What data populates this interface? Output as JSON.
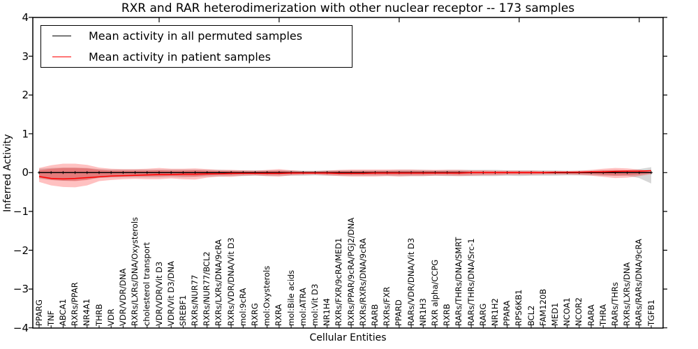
{
  "chart_data": {
    "type": "line",
    "title": "RXR and RAR heterodimerization with other nuclear receptor -- 173 samples",
    "xlabel": "Cellular Entities",
    "ylabel": "Inferred Activity",
    "ylim": [
      -4,
      4
    ],
    "ytick_values": [
      4,
      3,
      2,
      1,
      0,
      -1,
      -2,
      -3,
      -4
    ],
    "ytick_labels": [
      "4",
      "3",
      "2",
      "1",
      "0",
      "−1",
      "−2",
      "−3",
      "−4"
    ],
    "grid": false,
    "legend_position": "upper left",
    "xtick_major_indices": [
      10,
      20,
      30,
      40,
      50
    ],
    "categories": [
      "PPARG",
      "TNF",
      "ABCA1",
      "RXRs/PPAR",
      "NR4A1",
      "THRB",
      "VDR",
      "VDR/VDR/DNA",
      "RXRs/LXRs/DNA/Oxysterols",
      "cholesterol transport",
      "VDR/VDR/Vit D3",
      "VDR/Vit D3/DNA",
      "SREBF1",
      "RXRs/NUR77",
      "RXRs/NUR77/BCL2",
      "RXRs/LXRs/DNA/9cRA",
      "RXRs/VDR/DNA/Vit D3",
      "mol:9cRA",
      "RXRG",
      "mol:Oxysterols",
      "RXRA",
      "mol:Bile acids",
      "mol:ATRA",
      "mol:Vit D3",
      "NR1H4",
      "RXRs/FXR/9cRA/MED1",
      "RXRs/PPAR/9cRA/PGJ2/DNA",
      "RXRs/RXRs/DNA/9cRA",
      "RARB",
      "RXRs/FXR",
      "PPARD",
      "RARs/VDR/DNA/Vit D3",
      "NR1H3",
      "RXR alpha/CCPG",
      "RXRB",
      "RARs/THRs/DNA/SMRT",
      "RARs/THRs/DNA/Src-1",
      "RARG",
      "NR1H2",
      "PPARA",
      "RPS6KB1",
      "BCL2",
      "FAM120B",
      "MED1",
      "NCOA1",
      "NCOR2",
      "RARA",
      "THRA",
      "RARs/THRs",
      "RXRs/LXRs/DNA",
      "RARs/RARs/DNA/9cRA",
      "TGFB1"
    ],
    "series": [
      {
        "name": "Mean activity in all permuted samples",
        "color": "#000000",
        "marker": "+",
        "values": [
          0,
          0,
          0,
          0,
          0,
          0,
          0,
          0,
          0,
          0,
          0,
          0,
          0,
          0,
          0,
          0,
          0,
          0,
          0,
          0,
          0,
          0,
          0,
          0,
          0,
          0,
          0,
          0,
          0,
          0,
          0,
          0,
          0,
          0,
          0,
          0,
          0,
          0,
          0,
          0,
          0,
          0,
          0,
          0,
          0,
          0,
          0,
          0,
          0,
          0,
          0,
          0
        ]
      },
      {
        "name": "Mean activity in patient samples",
        "color": "#ff0000",
        "marker": "none",
        "values": [
          -0.1,
          -0.15,
          -0.16,
          -0.15,
          -0.13,
          -0.11,
          -0.09,
          -0.08,
          -0.07,
          -0.06,
          -0.05,
          -0.05,
          -0.04,
          -0.04,
          -0.03,
          -0.03,
          -0.02,
          -0.02,
          -0.02,
          -0.02,
          -0.02,
          -0.01,
          -0.01,
          -0.01,
          -0.01,
          -0.02,
          -0.02,
          -0.02,
          -0.01,
          -0.01,
          -0.01,
          -0.01,
          -0.01,
          -0.01,
          -0.01,
          -0.01,
          0,
          0,
          0,
          0,
          0,
          0,
          0,
          0.01,
          0.01,
          0.01,
          0.02,
          0.02,
          0.03,
          0.04,
          0.04,
          0.05
        ]
      }
    ],
    "bands": [
      {
        "name": "permuted-samples-spread",
        "color": "rgba(140,140,140,0.35)",
        "upper": [
          0.1,
          0.12,
          0.13,
          0.13,
          0.12,
          0.09,
          0.08,
          0.08,
          0.08,
          0.08,
          0.08,
          0.08,
          0.08,
          0.08,
          0.07,
          0.07,
          0.06,
          0.06,
          0.06,
          0.06,
          0.06,
          0.06,
          0.05,
          0.05,
          0.06,
          0.06,
          0.06,
          0.06,
          0.06,
          0.06,
          0.07,
          0.07,
          0.07,
          0.06,
          0.07,
          0.07,
          0.07,
          0.07,
          0.07,
          0.06,
          0.06,
          0.06,
          0.06,
          0.06,
          0.05,
          0.05,
          0.05,
          0.06,
          0.06,
          0.06,
          0.09,
          0.14
        ],
        "lower": [
          -0.16,
          -0.19,
          -0.21,
          -0.21,
          -0.18,
          -0.14,
          -0.13,
          -0.12,
          -0.12,
          -0.12,
          -0.12,
          -0.11,
          -0.12,
          -0.11,
          -0.1,
          -0.1,
          -0.09,
          -0.09,
          -0.08,
          -0.09,
          -0.09,
          -0.08,
          -0.08,
          -0.07,
          -0.08,
          -0.08,
          -0.08,
          -0.08,
          -0.08,
          -0.08,
          -0.09,
          -0.09,
          -0.09,
          -0.08,
          -0.09,
          -0.09,
          -0.09,
          -0.09,
          -0.09,
          -0.08,
          -0.09,
          -0.08,
          -0.08,
          -0.08,
          -0.07,
          -0.07,
          -0.07,
          -0.08,
          -0.08,
          -0.08,
          -0.14,
          -0.28
        ]
      },
      {
        "name": "patient-samples-spread-outer",
        "color": "rgba(255,25,25,0.27)",
        "upper": [
          0.12,
          0.19,
          0.23,
          0.23,
          0.2,
          0.13,
          0.1,
          0.09,
          0.09,
          0.1,
          0.12,
          0.1,
          0.1,
          0.11,
          0.09,
          0.07,
          0.07,
          0.06,
          0.05,
          0.07,
          0.09,
          0.06,
          0.04,
          0.04,
          0.05,
          0.07,
          0.08,
          0.08,
          0.08,
          0.08,
          0.08,
          0.08,
          0.07,
          0.07,
          0.07,
          0.07,
          0.06,
          0.06,
          0.05,
          0.05,
          0.05,
          0.05,
          0.04,
          0.04,
          0.04,
          0.05,
          0.07,
          0.1,
          0.12,
          0.11,
          0.08,
          0.03
        ],
        "lower": [
          -0.24,
          -0.33,
          -0.37,
          -0.38,
          -0.33,
          -0.22,
          -0.19,
          -0.17,
          -0.16,
          -0.17,
          -0.17,
          -0.15,
          -0.17,
          -0.18,
          -0.13,
          -0.1,
          -0.11,
          -0.08,
          -0.07,
          -0.09,
          -0.1,
          -0.07,
          -0.06,
          -0.05,
          -0.07,
          -0.09,
          -0.1,
          -0.1,
          -0.1,
          -0.09,
          -0.1,
          -0.09,
          -0.09,
          -0.08,
          -0.08,
          -0.09,
          -0.08,
          -0.07,
          -0.07,
          -0.06,
          -0.06,
          -0.06,
          -0.05,
          -0.05,
          -0.05,
          -0.06,
          -0.08,
          -0.11,
          -0.14,
          -0.13,
          -0.09,
          -0.04
        ]
      },
      {
        "name": "patient-samples-spread-inner",
        "color": "rgba(235,0,0,0.25)",
        "upper": [
          0.06,
          0.1,
          0.12,
          0.12,
          0.11,
          0.07,
          0.05,
          0.05,
          0.05,
          0.05,
          0.06,
          0.05,
          0.05,
          0.06,
          0.05,
          0.04,
          0.04,
          0.03,
          0.03,
          0.04,
          0.05,
          0.03,
          0.02,
          0.02,
          0.03,
          0.04,
          0.04,
          0.04,
          0.04,
          0.04,
          0.04,
          0.04,
          0.04,
          0.04,
          0.04,
          0.04,
          0.03,
          0.03,
          0.03,
          0.03,
          0.03,
          0.03,
          0.02,
          0.02,
          0.02,
          0.03,
          0.04,
          0.06,
          0.07,
          0.06,
          0.04,
          0.02
        ],
        "lower": [
          -0.13,
          -0.19,
          -0.21,
          -0.22,
          -0.19,
          -0.12,
          -0.1,
          -0.09,
          -0.09,
          -0.09,
          -0.09,
          -0.08,
          -0.09,
          -0.1,
          -0.07,
          -0.05,
          -0.06,
          -0.04,
          -0.04,
          -0.05,
          -0.05,
          -0.04,
          -0.03,
          -0.03,
          -0.04,
          -0.05,
          -0.05,
          -0.05,
          -0.05,
          -0.05,
          -0.05,
          -0.05,
          -0.05,
          -0.04,
          -0.04,
          -0.05,
          -0.04,
          -0.04,
          -0.04,
          -0.03,
          -0.03,
          -0.03,
          -0.03,
          -0.03,
          -0.03,
          -0.03,
          -0.04,
          -0.06,
          -0.08,
          -0.07,
          -0.05,
          -0.02
        ]
      }
    ],
    "axis_color": "#000000",
    "background_color": "#ffffff"
  }
}
